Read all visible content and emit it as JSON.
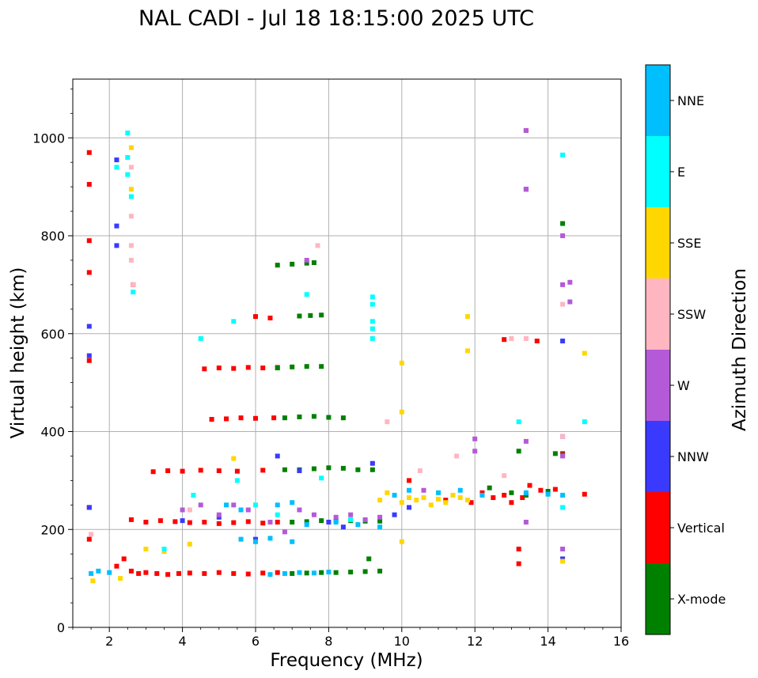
{
  "chart_data": {
    "type": "scatter",
    "title": "NAL CADI - Jul 18 18:15:00 2025 UTC",
    "xlabel": "Frequency (MHz)",
    "ylabel": "Virtual height (km)",
    "xlim": [
      1,
      16
    ],
    "ylim": [
      0,
      1120
    ],
    "xticks": [
      2,
      4,
      6,
      8,
      10,
      12,
      14,
      16
    ],
    "yticks": [
      0,
      200,
      400,
      600,
      800,
      1000
    ],
    "grid": true,
    "colorbar": {
      "title": "Azimuth Direction",
      "categories": [
        {
          "name": "X-mode",
          "color": "#008000"
        },
        {
          "name": "Vertical",
          "color": "#ff0000"
        },
        {
          "name": "NNW",
          "color": "#3a3aff"
        },
        {
          "name": "W",
          "color": "#b45ad8"
        },
        {
          "name": "SSW",
          "color": "#ffb6c1"
        },
        {
          "name": "SSE",
          "color": "#ffd700"
        },
        {
          "name": "E",
          "color": "#00ffff"
        },
        {
          "name": "NNE",
          "color": "#00bfff"
        }
      ]
    },
    "series": [
      {
        "name": "Vertical",
        "points": [
          [
            1.45,
            970
          ],
          [
            1.45,
            905
          ],
          [
            1.45,
            790
          ],
          [
            1.45,
            725
          ],
          [
            1.45,
            545
          ],
          [
            1.45,
            245
          ],
          [
            1.45,
            180
          ],
          [
            2.2,
            125
          ],
          [
            2.4,
            140
          ],
          [
            2.6,
            115
          ],
          [
            2.8,
            110
          ],
          [
            3.0,
            112
          ],
          [
            3.3,
            110
          ],
          [
            3.6,
            108
          ],
          [
            3.9,
            110
          ],
          [
            4.2,
            111
          ],
          [
            4.6,
            110
          ],
          [
            5.0,
            112
          ],
          [
            5.4,
            110
          ],
          [
            5.8,
            109
          ],
          [
            6.2,
            111
          ],
          [
            6.6,
            112
          ],
          [
            2.6,
            220
          ],
          [
            3.0,
            215
          ],
          [
            3.4,
            218
          ],
          [
            3.8,
            216
          ],
          [
            4.2,
            214
          ],
          [
            4.6,
            215
          ],
          [
            5.0,
            212
          ],
          [
            5.4,
            214
          ],
          [
            5.8,
            216
          ],
          [
            6.2,
            213
          ],
          [
            6.6,
            215
          ],
          [
            3.2,
            318
          ],
          [
            3.6,
            320
          ],
          [
            4.0,
            319
          ],
          [
            4.5,
            321
          ],
          [
            5.0,
            320
          ],
          [
            5.5,
            319
          ],
          [
            6.2,
            321
          ],
          [
            4.8,
            425
          ],
          [
            5.2,
            426
          ],
          [
            5.6,
            428
          ],
          [
            6.0,
            427
          ],
          [
            6.5,
            428
          ],
          [
            4.6,
            528
          ],
          [
            5.0,
            530
          ],
          [
            5.4,
            529
          ],
          [
            5.8,
            531
          ],
          [
            6.2,
            530
          ],
          [
            6.6,
            531
          ],
          [
            6.0,
            635
          ],
          [
            6.4,
            632
          ],
          [
            2.65,
            700
          ],
          [
            10.2,
            300
          ],
          [
            11.2,
            260
          ],
          [
            11.9,
            255
          ],
          [
            12.2,
            275
          ],
          [
            12.5,
            265
          ],
          [
            12.8,
            270
          ],
          [
            13.0,
            255
          ],
          [
            13.3,
            265
          ],
          [
            13.5,
            290
          ],
          [
            13.8,
            280
          ],
          [
            14.2,
            282
          ],
          [
            14.4,
            355
          ],
          [
            15.0,
            272
          ],
          [
            13.2,
            160
          ],
          [
            13.2,
            130
          ],
          [
            13.4,
            1015
          ],
          [
            13.7,
            585
          ],
          [
            12.8,
            588
          ]
        ]
      },
      {
        "name": "X-mode",
        "points": [
          [
            6.6,
            530
          ],
          [
            7.0,
            532
          ],
          [
            7.4,
            533
          ],
          [
            7.8,
            533
          ],
          [
            6.6,
            740
          ],
          [
            7.0,
            742
          ],
          [
            7.4,
            744
          ],
          [
            7.6,
            745
          ],
          [
            7.2,
            636
          ],
          [
            7.5,
            637
          ],
          [
            7.8,
            638
          ],
          [
            6.8,
            428
          ],
          [
            7.2,
            430
          ],
          [
            7.6,
            431
          ],
          [
            8.0,
            429
          ],
          [
            8.4,
            428
          ],
          [
            6.8,
            322
          ],
          [
            7.2,
            322
          ],
          [
            7.6,
            324
          ],
          [
            8.0,
            326
          ],
          [
            8.4,
            325
          ],
          [
            8.8,
            322
          ],
          [
            9.2,
            322
          ],
          [
            7.0,
            110
          ],
          [
            7.4,
            111
          ],
          [
            7.8,
            112
          ],
          [
            8.2,
            112
          ],
          [
            8.6,
            113
          ],
          [
            9.0,
            114
          ],
          [
            9.4,
            115
          ],
          [
            7.0,
            215
          ],
          [
            7.4,
            216
          ],
          [
            7.8,
            218
          ],
          [
            8.2,
            218
          ],
          [
            8.6,
            218
          ],
          [
            9.0,
            217
          ],
          [
            9.4,
            217
          ],
          [
            9.1,
            140
          ],
          [
            12.4,
            285
          ],
          [
            13.0,
            275
          ],
          [
            13.2,
            360
          ],
          [
            13.4,
            270
          ],
          [
            14.0,
            278
          ],
          [
            14.2,
            355
          ],
          [
            14.4,
            352
          ],
          [
            14.4,
            825
          ]
        ]
      },
      {
        "name": "NNW",
        "points": [
          [
            1.45,
            615
          ],
          [
            1.45,
            555
          ],
          [
            1.45,
            245
          ],
          [
            2.2,
            955
          ],
          [
            2.2,
            820
          ],
          [
            2.2,
            780
          ],
          [
            4.0,
            218
          ],
          [
            5.0,
            225
          ],
          [
            6.0,
            180
          ],
          [
            6.6,
            350
          ],
          [
            7.2,
            320
          ],
          [
            8.0,
            215
          ],
          [
            8.4,
            205
          ],
          [
            9.2,
            335
          ],
          [
            9.8,
            230
          ],
          [
            10.2,
            245
          ],
          [
            13.4,
            895
          ],
          [
            14.4,
            585
          ],
          [
            14.4,
            390
          ],
          [
            14.4,
            140
          ]
        ]
      },
      {
        "name": "W",
        "points": [
          [
            4.0,
            240
          ],
          [
            4.5,
            250
          ],
          [
            5.0,
            230
          ],
          [
            5.4,
            250
          ],
          [
            5.8,
            240
          ],
          [
            6.4,
            215
          ],
          [
            6.8,
            195
          ],
          [
            7.2,
            240
          ],
          [
            7.6,
            230
          ],
          [
            8.2,
            225
          ],
          [
            8.6,
            230
          ],
          [
            9.0,
            220
          ],
          [
            9.4,
            225
          ],
          [
            10.6,
            280
          ],
          [
            12.0,
            385
          ],
          [
            12.0,
            360
          ],
          [
            13.4,
            380
          ],
          [
            13.4,
            215
          ],
          [
            13.4,
            1015
          ],
          [
            13.4,
            895
          ],
          [
            14.4,
            800
          ],
          [
            14.4,
            700
          ],
          [
            14.6,
            705
          ],
          [
            14.6,
            665
          ],
          [
            14.4,
            350
          ],
          [
            14.4,
            160
          ],
          [
            7.4,
            750
          ]
        ]
      },
      {
        "name": "SSW",
        "points": [
          [
            1.5,
            190
          ],
          [
            2.6,
            940
          ],
          [
            2.6,
            840
          ],
          [
            2.6,
            780
          ],
          [
            2.6,
            750
          ],
          [
            2.65,
            700
          ],
          [
            7.7,
            780
          ],
          [
            9.6,
            420
          ],
          [
            10.5,
            320
          ],
          [
            11.5,
            350
          ],
          [
            12.8,
            310
          ],
          [
            13.0,
            590
          ],
          [
            13.4,
            590
          ],
          [
            14.4,
            660
          ],
          [
            14.4,
            390
          ],
          [
            4.2,
            240
          ]
        ]
      },
      {
        "name": "SSE",
        "points": [
          [
            1.55,
            95
          ],
          [
            2.6,
            980
          ],
          [
            2.6,
            895
          ],
          [
            2.3,
            100
          ],
          [
            3.0,
            160
          ],
          [
            3.5,
            155
          ],
          [
            4.2,
            170
          ],
          [
            5.4,
            345
          ],
          [
            9.4,
            260
          ],
          [
            9.6,
            275
          ],
          [
            10.0,
            255
          ],
          [
            10.2,
            265
          ],
          [
            10.4,
            260
          ],
          [
            10.6,
            265
          ],
          [
            10.8,
            250
          ],
          [
            11.0,
            262
          ],
          [
            11.2,
            255
          ],
          [
            11.4,
            270
          ],
          [
            11.6,
            265
          ],
          [
            11.8,
            260
          ],
          [
            10.0,
            540
          ],
          [
            10.0,
            440
          ],
          [
            10.0,
            175
          ],
          [
            11.8,
            635
          ],
          [
            11.8,
            565
          ],
          [
            15.0,
            560
          ],
          [
            14.4,
            135
          ]
        ]
      },
      {
        "name": "E",
        "points": [
          [
            2.5,
            1010
          ],
          [
            2.5,
            960
          ],
          [
            2.5,
            925
          ],
          [
            2.6,
            880
          ],
          [
            2.65,
            685
          ],
          [
            2.2,
            940
          ],
          [
            3.5,
            160
          ],
          [
            4.3,
            270
          ],
          [
            5.4,
            625
          ],
          [
            4.5,
            590
          ],
          [
            5.5,
            300
          ],
          [
            6.0,
            250
          ],
          [
            6.6,
            230
          ],
          [
            7.4,
            680
          ],
          [
            7.8,
            305
          ],
          [
            9.2,
            675
          ],
          [
            9.2,
            660
          ],
          [
            9.2,
            625
          ],
          [
            9.2,
            610
          ],
          [
            9.2,
            590
          ],
          [
            13.2,
            420
          ],
          [
            14.4,
            965
          ],
          [
            15.0,
            420
          ],
          [
            14.4,
            245
          ],
          [
            8.6,
            220
          ]
        ]
      },
      {
        "name": "NNE",
        "points": [
          [
            1.5,
            110
          ],
          [
            1.7,
            115
          ],
          [
            2.0,
            112
          ],
          [
            6.4,
            108
          ],
          [
            6.8,
            110
          ],
          [
            7.2,
            112
          ],
          [
            7.6,
            111
          ],
          [
            8.0,
            113
          ],
          [
            5.6,
            180
          ],
          [
            6.0,
            175
          ],
          [
            6.4,
            182
          ],
          [
            7.0,
            175
          ],
          [
            7.4,
            210
          ],
          [
            8.2,
            215
          ],
          [
            8.8,
            210
          ],
          [
            9.4,
            205
          ],
          [
            9.8,
            270
          ],
          [
            10.2,
            280
          ],
          [
            11.0,
            275
          ],
          [
            11.6,
            280
          ],
          [
            12.2,
            270
          ],
          [
            13.4,
            275
          ],
          [
            14.0,
            272
          ],
          [
            14.4,
            270
          ],
          [
            6.6,
            250
          ],
          [
            7.0,
            255
          ],
          [
            5.2,
            250
          ],
          [
            5.6,
            240
          ]
        ]
      }
    ]
  }
}
